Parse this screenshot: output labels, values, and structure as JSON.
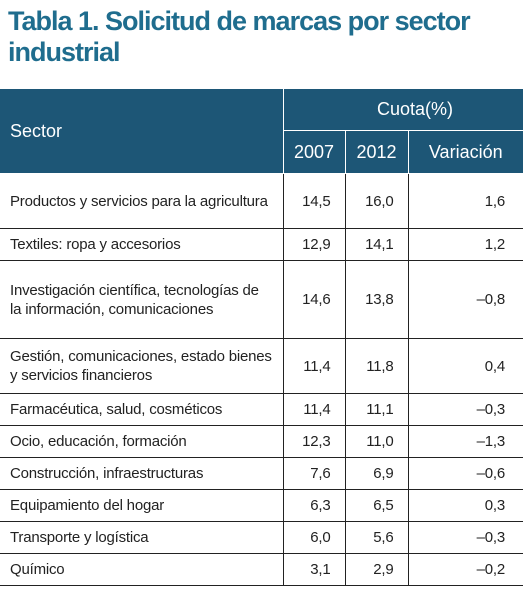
{
  "header": {
    "title": "Tabla 1. Solicitud de marcas por sector industrial"
  },
  "table": {
    "columns": {
      "sector": "Sector",
      "group": "Cuota(%)",
      "sub": [
        "2007",
        "2012",
        "Variación"
      ]
    },
    "rows": [
      [
        "Productos y servicios para la agricultura",
        "14,5",
        "16,0",
        "1,6"
      ],
      [
        "Textiles: ropa y accesorios",
        "12,9",
        "14,1",
        "1,2"
      ],
      [
        "Investigación científica, tecnologías de la información, comunicaciones",
        "14,6",
        "13,8",
        "–0,8"
      ],
      [
        "Gestión, comunicaciones, estado bienes y servicios financieros",
        "11,4",
        "11,8",
        "0,4"
      ],
      [
        "Farmacéutica, salud, cosméticos",
        "11,4",
        "11,1",
        "–0,3"
      ],
      [
        "Ocio, educación, formación",
        "12,3",
        "11,0",
        "–1,3"
      ],
      [
        "Construcción, infraestructuras",
        "7,6",
        "6,9",
        "–0,6"
      ],
      [
        "Equipamiento del hogar",
        "6,3",
        "6,5",
        "0,3"
      ],
      [
        "Transporte y logística",
        "6,0",
        "5,6",
        "–0,3"
      ],
      [
        "Químico",
        "3,1",
        "2,9",
        "–0,2"
      ]
    ]
  }
}
